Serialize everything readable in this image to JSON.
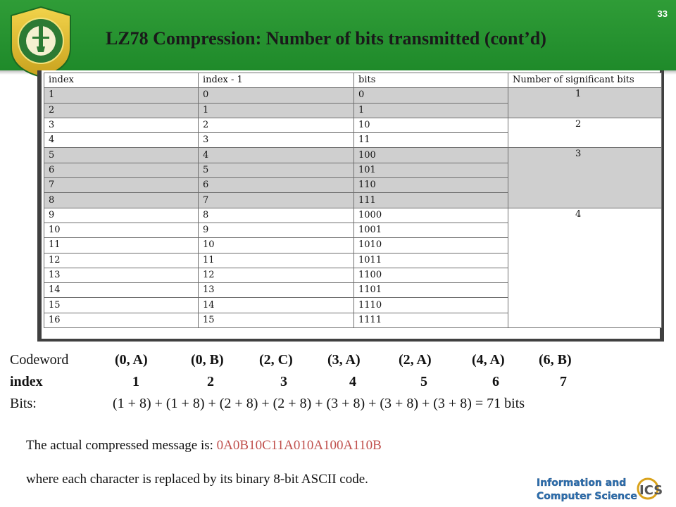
{
  "slide": {
    "number": "33",
    "title": "LZ78 Compression: Number of bits transmitted (cont’d)"
  },
  "table": {
    "headers": [
      "index",
      "index - 1",
      "bits",
      "Number of significant bits"
    ],
    "rows": [
      [
        "1",
        "0",
        "0"
      ],
      [
        "2",
        "1",
        "1"
      ],
      [
        "3",
        "2",
        "10"
      ],
      [
        "4",
        "3",
        "11"
      ],
      [
        "5",
        "4",
        "100"
      ],
      [
        "6",
        "5",
        "101"
      ],
      [
        "7",
        "6",
        "110"
      ],
      [
        "8",
        "7",
        "111"
      ],
      [
        "9",
        "8",
        "1000"
      ],
      [
        "10",
        "9",
        "1001"
      ],
      [
        "11",
        "10",
        "1010"
      ],
      [
        "12",
        "11",
        "1011"
      ],
      [
        "13",
        "12",
        "1100"
      ],
      [
        "14",
        "13",
        "1101"
      ],
      [
        "15",
        "14",
        "1110"
      ],
      [
        "16",
        "15",
        "1111"
      ]
    ],
    "groups": [
      {
        "value": "1",
        "rows": 2,
        "shade": "gray"
      },
      {
        "value": "2",
        "rows": 2,
        "shade": "white"
      },
      {
        "value": "3",
        "rows": 4,
        "shade": "gray"
      },
      {
        "value": "4",
        "rows": 8,
        "shade": "white"
      }
    ]
  },
  "codewords": {
    "label": "Codeword",
    "items": [
      "(0, A)",
      "(0, B)",
      "(2, C)",
      "(3, A)",
      "(2, A)",
      "(4, A)",
      "(6, B)"
    ]
  },
  "indices": {
    "label": "index",
    "items": [
      "1",
      "2",
      "3",
      "4",
      "5",
      "6",
      "7"
    ]
  },
  "bits": {
    "label": "Bits:",
    "expression": "(1 + 8) + (1 + 8) + (2 + 8) + (2 + 8) + (3 + 8) + (3 + 8) + (3 + 8) =  71 bits"
  },
  "message": {
    "prefix": "The actual compressed message is: ",
    "parts": [
      {
        "text": "0A",
        "color": "red"
      },
      {
        "text": "0B",
        "color": "red"
      },
      {
        "text": "10C",
        "color": "red"
      },
      {
        "text": "11A",
        "color": "red"
      },
      {
        "text": "010A",
        "color": "red"
      },
      {
        "text": "100A",
        "color": "red"
      },
      {
        "text": "110B",
        "color": "red"
      }
    ]
  },
  "note": "where each character is replaced by its binary 8-bit ASCII code.",
  "footer_logo": {
    "line1": "Information and",
    "line2": "Computer Science",
    "mark": "ICS"
  },
  "colors": {
    "header_green": "#2f9c37",
    "gray_row": "#cfcfcf",
    "message_red": "#c0504d"
  }
}
